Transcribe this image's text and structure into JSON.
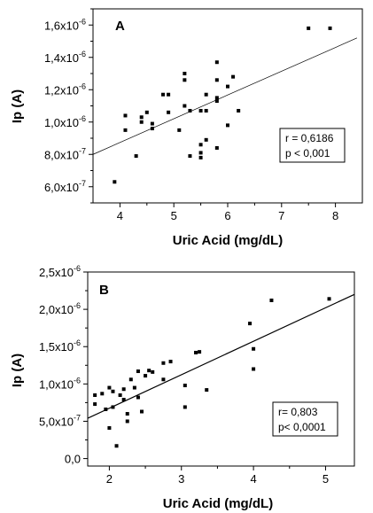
{
  "chart_data": [
    {
      "panel": "A",
      "type": "scatter",
      "xlabel": "Uric Acid (mg/dL)",
      "ylabel": "Ip (A)",
      "xlim": [
        3.5,
        8.5
      ],
      "ylim": [
        5e-07,
        1.7e-06
      ],
      "x_ticks": [
        4,
        5,
        6,
        7,
        8
      ],
      "x_tick_labels": [
        "4",
        "5",
        "6",
        "7",
        "8"
      ],
      "y_ticks": [
        6e-07,
        8e-07,
        1e-06,
        1.2e-06,
        1.4e-06,
        1.6e-06
      ],
      "y_tick_mantissas": [
        "6,0x10",
        "8,0x10",
        "1,0x10",
        "1,2x10",
        "1,4x10",
        "1,6x10"
      ],
      "y_tick_exponents": [
        "-7",
        "-7",
        "-6",
        "-6",
        "-6",
        "-6"
      ],
      "y_minor_ticks": [
        5e-07,
        7e-07,
        9e-07,
        1.1e-06,
        1.3e-06,
        1.5e-06,
        1.7e-06
      ],
      "fit_line": {
        "x": [
          3.5,
          8.4
        ],
        "y": [
          8e-07,
          1.52e-06
        ]
      },
      "stats": [
        "r = 0,6186",
        "p < 0,001"
      ],
      "points": [
        {
          "x": 3.9,
          "y": 6.3e-07
        },
        {
          "x": 4.1,
          "y": 1.04e-06
        },
        {
          "x": 4.1,
          "y": 9.5e-07
        },
        {
          "x": 4.3,
          "y": 7.9e-07
        },
        {
          "x": 4.4,
          "y": 1.03e-06
        },
        {
          "x": 4.4,
          "y": 1e-06
        },
        {
          "x": 4.5,
          "y": 1.06e-06
        },
        {
          "x": 4.6,
          "y": 9.6e-07
        },
        {
          "x": 4.6,
          "y": 9.9e-07
        },
        {
          "x": 4.8,
          "y": 1.17e-06
        },
        {
          "x": 4.9,
          "y": 1.17e-06
        },
        {
          "x": 4.9,
          "y": 1.06e-06
        },
        {
          "x": 5.1,
          "y": 9.5e-07
        },
        {
          "x": 5.2,
          "y": 1.3e-06
        },
        {
          "x": 5.2,
          "y": 1.26e-06
        },
        {
          "x": 5.2,
          "y": 1.1e-06
        },
        {
          "x": 5.3,
          "y": 7.9e-07
        },
        {
          "x": 5.3,
          "y": 1.07e-06
        },
        {
          "x": 5.5,
          "y": 1.07e-06
        },
        {
          "x": 5.5,
          "y": 8.6e-07
        },
        {
          "x": 5.5,
          "y": 8.1e-07
        },
        {
          "x": 5.5,
          "y": 7.8e-07
        },
        {
          "x": 5.6,
          "y": 1.07e-06
        },
        {
          "x": 5.6,
          "y": 1.17e-06
        },
        {
          "x": 5.6,
          "y": 8.9e-07
        },
        {
          "x": 5.8,
          "y": 1.37e-06
        },
        {
          "x": 5.8,
          "y": 1.26e-06
        },
        {
          "x": 5.8,
          "y": 1.15e-06
        },
        {
          "x": 5.8,
          "y": 1.13e-06
        },
        {
          "x": 5.8,
          "y": 8.4e-07
        },
        {
          "x": 6.0,
          "y": 1.22e-06
        },
        {
          "x": 6.0,
          "y": 9.8e-07
        },
        {
          "x": 6.1,
          "y": 1.28e-06
        },
        {
          "x": 6.2,
          "y": 1.07e-06
        },
        {
          "x": 7.5,
          "y": 1.58e-06
        },
        {
          "x": 7.9,
          "y": 1.58e-06
        }
      ]
    },
    {
      "panel": "B",
      "type": "scatter",
      "xlabel": "Uric Acid (mg/dL)",
      "ylabel": "Ip (A)",
      "xlim": [
        1.7,
        5.4
      ],
      "ylim": [
        -1e-07,
        2.5e-06
      ],
      "x_ticks": [
        2,
        3,
        4,
        5
      ],
      "x_tick_labels": [
        "2",
        "3",
        "4",
        "5"
      ],
      "y_ticks": [
        0,
        5e-07,
        1e-06,
        1.5e-06,
        2e-06,
        2.5e-06
      ],
      "y_tick_mantissas": [
        "0,0",
        "5,0x10",
        "1,0x10",
        "1,5x10",
        "2,0x10",
        "2,5x10"
      ],
      "y_tick_exponents": [
        "",
        "-7",
        "-6",
        "-6",
        "-6",
        "-6"
      ],
      "y_minor_ticks": [
        2.5e-07,
        7.5e-07,
        1.25e-06,
        1.75e-06,
        2.25e-06
      ],
      "fit_line": {
        "x": [
          1.7,
          5.4
        ],
        "y": [
          5.4e-07,
          2.2e-06
        ]
      },
      "stats": [
        "r= 0,803",
        "p< 0,0001"
      ],
      "points": [
        {
          "x": 1.8,
          "y": 8.5e-07
        },
        {
          "x": 1.8,
          "y": 7.3e-07
        },
        {
          "x": 1.9,
          "y": 8.7e-07
        },
        {
          "x": 1.95,
          "y": 6.6e-07
        },
        {
          "x": 2.0,
          "y": 4.1e-07
        },
        {
          "x": 2.0,
          "y": 9.5e-07
        },
        {
          "x": 2.05,
          "y": 9e-07
        },
        {
          "x": 2.05,
          "y": 6.9e-07
        },
        {
          "x": 2.1,
          "y": 1.7e-07
        },
        {
          "x": 2.15,
          "y": 8.5e-07
        },
        {
          "x": 2.2,
          "y": 9.3e-07
        },
        {
          "x": 2.2,
          "y": 7.9e-07
        },
        {
          "x": 2.25,
          "y": 6e-07
        },
        {
          "x": 2.25,
          "y": 5e-07
        },
        {
          "x": 2.3,
          "y": 1.06e-06
        },
        {
          "x": 2.35,
          "y": 9.5e-07
        },
        {
          "x": 2.4,
          "y": 1.17e-06
        },
        {
          "x": 2.4,
          "y": 8.2e-07
        },
        {
          "x": 2.45,
          "y": 6.3e-07
        },
        {
          "x": 2.5,
          "y": 1.11e-06
        },
        {
          "x": 2.55,
          "y": 1.18e-06
        },
        {
          "x": 2.6,
          "y": 1.16e-06
        },
        {
          "x": 2.75,
          "y": 1.28e-06
        },
        {
          "x": 2.75,
          "y": 1.06e-06
        },
        {
          "x": 2.85,
          "y": 1.3e-06
        },
        {
          "x": 3.05,
          "y": 9.8e-07
        },
        {
          "x": 3.05,
          "y": 6.9e-07
        },
        {
          "x": 3.2,
          "y": 1.42e-06
        },
        {
          "x": 3.25,
          "y": 1.43e-06
        },
        {
          "x": 3.35,
          "y": 9.2e-07
        },
        {
          "x": 3.95,
          "y": 1.81e-06
        },
        {
          "x": 4.0,
          "y": 1.47e-06
        },
        {
          "x": 4.0,
          "y": 1.2e-06
        },
        {
          "x": 4.25,
          "y": 2.12e-06
        },
        {
          "x": 5.05,
          "y": 2.14e-06
        }
      ]
    }
  ]
}
